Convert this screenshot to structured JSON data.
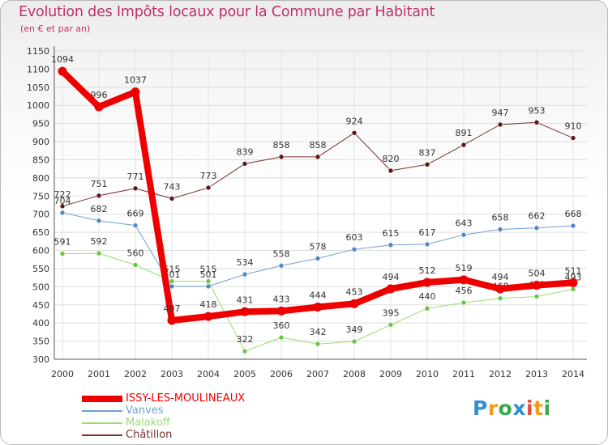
{
  "header": {
    "title": "Evolution des Impôts locaux pour la Commune par Habitant",
    "subtitle": "(en € et par an)"
  },
  "brand": {
    "letters": [
      "P",
      "r",
      "o",
      "x",
      "i",
      "t",
      "i"
    ],
    "colors": [
      "#2f8fd4",
      "#f29c1f",
      "#39a94b",
      "#2f8fd4",
      "#e84c3d",
      "#f29c1f",
      "#39a94b"
    ]
  },
  "legend": [
    {
      "label": "ISSY-LES-MOULINEAUX",
      "color": "#ee0000"
    },
    {
      "label": "Vanves",
      "color": "#6f9fd3"
    },
    {
      "label": "Malakoff",
      "color": "#99dd77"
    },
    {
      "label": "Châtillon",
      "color": "#7a2f2f"
    }
  ],
  "chart_data": {
    "type": "line",
    "title": "Evolution des Impôts locaux pour la Commune par Habitant",
    "subtitle": "(en € et par an)",
    "xlabel": "",
    "ylabel": "",
    "ylim": [
      300,
      1150
    ],
    "ytick_step": 50,
    "grid": true,
    "categories": [
      "2000",
      "2001",
      "2002",
      "2003",
      "2004",
      "2005",
      "2006",
      "2007",
      "2008",
      "2009",
      "2010",
      "2011",
      "2012",
      "2013",
      "2014"
    ],
    "series": [
      {
        "name": "Châtillon",
        "color": "#7a2f2f",
        "marker": "#5e1717",
        "width": 1,
        "values": [
          722,
          751,
          771,
          743,
          773,
          839,
          858,
          858,
          924,
          820,
          837,
          891,
          947,
          953,
          910
        ]
      },
      {
        "name": "Vanves",
        "color": "#6f9fd3",
        "marker": "#4f88c6",
        "width": 1,
        "values": [
          704,
          682,
          669,
          501,
          501,
          534,
          558,
          578,
          603,
          615,
          617,
          643,
          658,
          662,
          668
        ]
      },
      {
        "name": "Malakoff",
        "color": "#99dd77",
        "marker": "#6fc24a",
        "width": 1,
        "values": [
          591,
          592,
          560,
          515,
          515,
          322,
          360,
          342,
          349,
          395,
          440,
          456,
          468,
          473,
          493
        ]
      },
      {
        "name": "ISSY-LES-MOULINEAUX",
        "color": "#ee0000",
        "marker": "#ee0000",
        "width": 8,
        "values": [
          1094,
          996,
          1037,
          407,
          418,
          431,
          433,
          444,
          453,
          494,
          512,
          519,
          494,
          504,
          511
        ]
      }
    ]
  }
}
